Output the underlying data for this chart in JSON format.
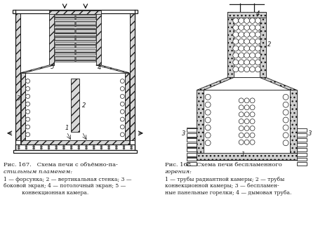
{
  "bg_color": "#ffffff",
  "line_color": "#1a1a1a",
  "fig_title_1a": "Рис. 167.   Схема печи с объёмно-па-",
  "fig_title_1b": "стильным пламенем:",
  "fig_caption_1": "1 — форсунка; 2 — вертикальная стенка; 3 —\nбоковой экран; 4 — потолочный экран; 5 —\n           конвекционная камера.",
  "fig_title_2a": "Рис. 168.  Схема печи беспламенного",
  "fig_title_2b": "горения:",
  "fig_caption_2": "1 — трубы радиантной камеры; 2 — трубы\nконвекционной камеры; 3 — беспламен-\nные панельные горелки; 4 — дымовая труба."
}
